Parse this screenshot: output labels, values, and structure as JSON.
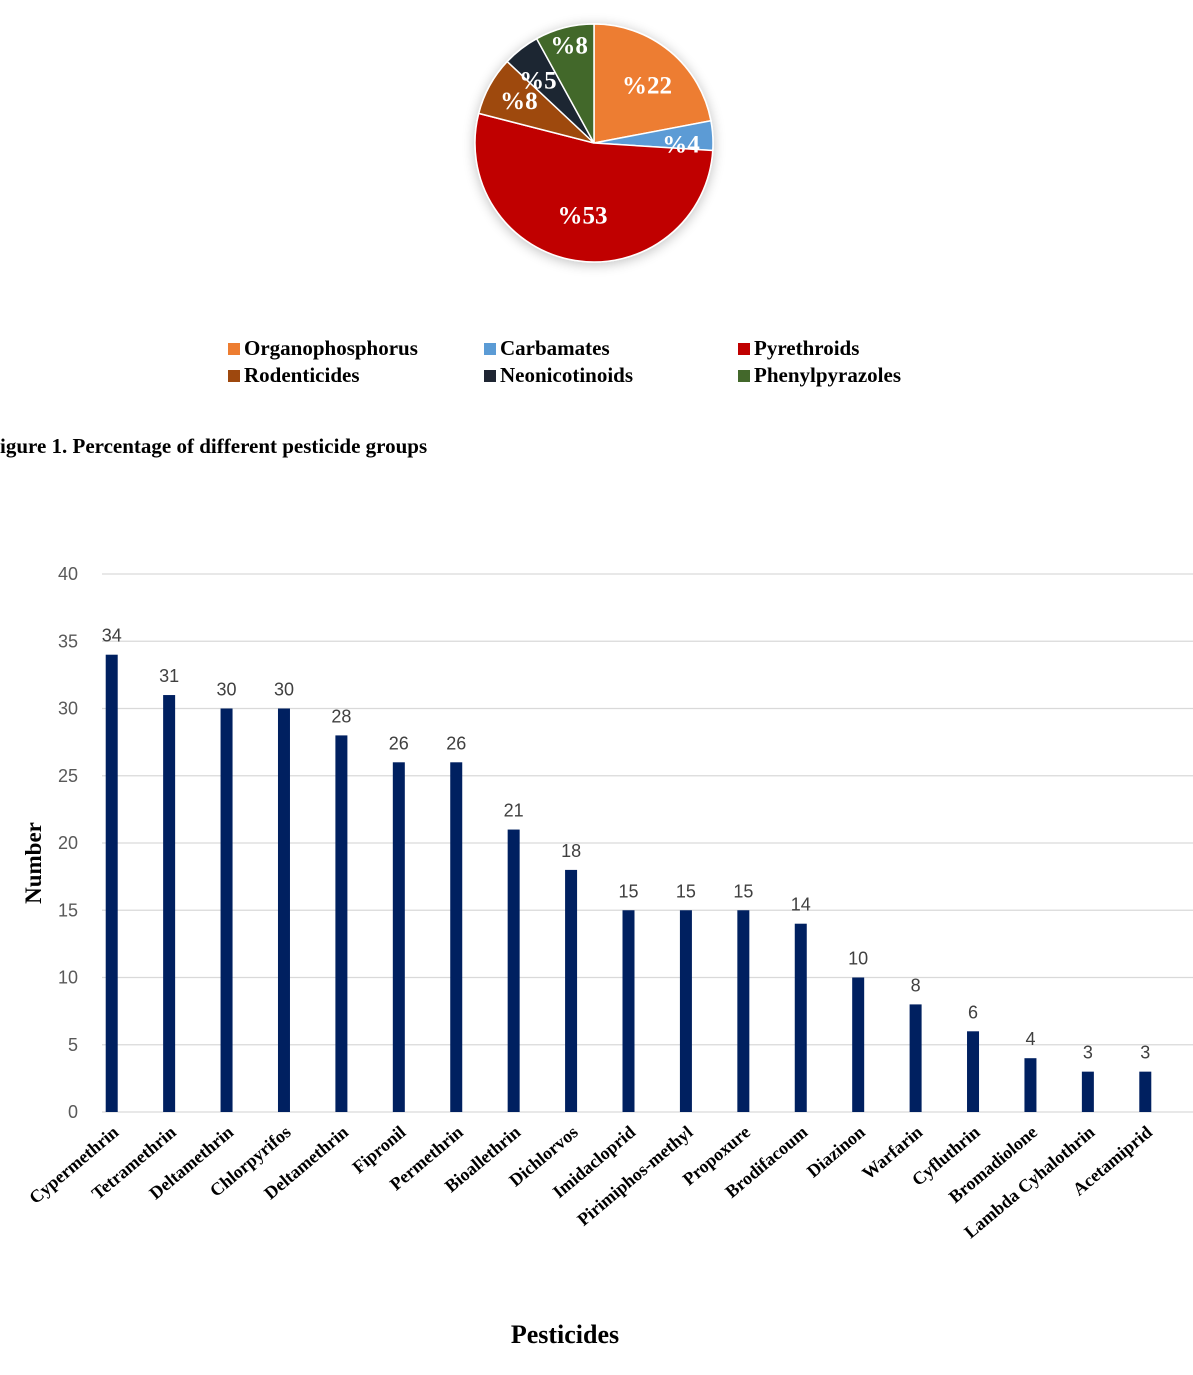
{
  "chart_data": [
    {
      "type": "pie",
      "slices": [
        {
          "label": "Organophosphorus",
          "value": 22,
          "display": "%22",
          "color": "#ED7D31"
        },
        {
          "label": "Carbamates",
          "value": 4,
          "display": "%4",
          "color": "#5B9BD5"
        },
        {
          "label": "Pyrethroids",
          "value": 53,
          "display": "%53",
          "color": "#C00000"
        },
        {
          "label": "Rodenticides",
          "value": 8,
          "display": "%8",
          "color": "#9E480E"
        },
        {
          "label": "Neonicotinoids",
          "value": 5,
          "display": "%5",
          "color": "#1F2633"
        },
        {
          "label": "Phenylpyrazoles",
          "value": 8,
          "display": "%8",
          "color": "#43682B"
        }
      ],
      "legend": [
        "Organophosphorus",
        "Carbamates",
        "Pyrethroids",
        "Rodenticides",
        "Neonicotinoids",
        "Phenylpyrazoles"
      ],
      "legend_position": "bottom"
    },
    {
      "type": "bar",
      "categories": [
        "Cypermethrin",
        "Tetramethrin",
        "Deltamethrin",
        "Chlorpyrifos",
        "Deltamethrin",
        "Fipronil",
        "Permethrin",
        "Bioallethrin",
        "Dichlorvos",
        "Imidacloprid",
        "Pirimiphos-methyl",
        "Propoxure",
        "Brodifacoum",
        "Diazinon",
        "Warfarin",
        "Cyfluthrin",
        "Bromadiolone",
        "Lambda Cyhalothrin",
        "Acetamiprid"
      ],
      "values": [
        34,
        31,
        30,
        30,
        28,
        26,
        26,
        21,
        18,
        15,
        15,
        15,
        14,
        10,
        8,
        6,
        4,
        3,
        3
      ],
      "xlabel": "Pesticides",
      "ylabel": "Number",
      "ylim": [
        0,
        40
      ],
      "yticks": [
        0,
        5,
        10,
        15,
        20,
        25,
        30,
        35,
        40
      ],
      "grid": true,
      "bar_color": "#002060"
    }
  ],
  "figure_caption": "igure 1. Percentage of different pesticide groups"
}
